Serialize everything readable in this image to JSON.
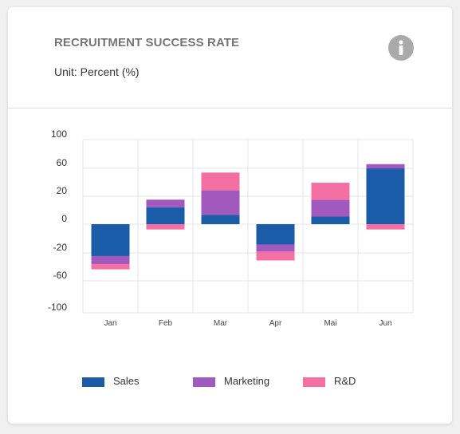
{
  "card": {
    "title": "RECRUITMENT SUCCESS RATE",
    "subtitle": "Unit: Percent (%)",
    "info_icon": "info-icon"
  },
  "chart_data": {
    "type": "bar",
    "stacked": true,
    "categories": [
      "Jan",
      "Feb",
      "Mar",
      "Apr",
      "Mai",
      "Jun"
    ],
    "series": [
      {
        "name": "Sales",
        "color": "#1a5ca8",
        "values": [
          -36,
          20,
          11,
          -23,
          9,
          66
        ]
      },
      {
        "name": "Marketing",
        "color": "#a259bd",
        "values": [
          -9,
          9,
          29,
          -8,
          20,
          5
        ]
      },
      {
        "name": "R&D",
        "color": "#f46fa2",
        "values": [
          -6,
          -6,
          21,
          -10,
          20,
          -6
        ]
      }
    ],
    "yticks": [
      100,
      60,
      20,
      0,
      -20,
      -60,
      -100
    ],
    "ylim": [
      -100,
      100
    ],
    "grid": true,
    "legend_position": "bottom"
  }
}
